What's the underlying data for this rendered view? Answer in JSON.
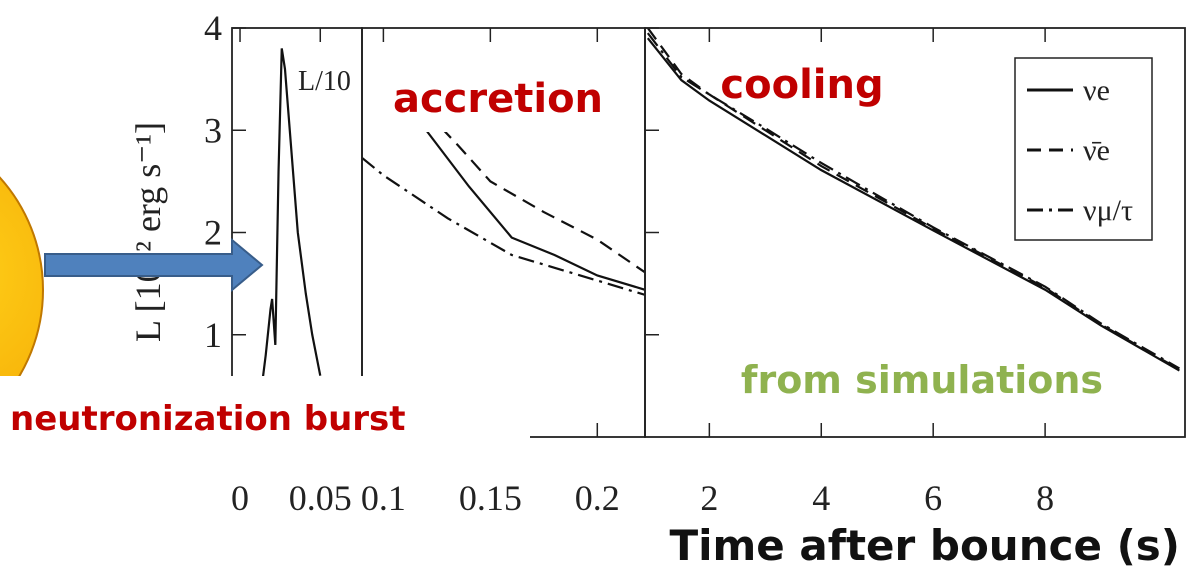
{
  "chart_data": [
    {
      "type": "line",
      "ylabel": "L [10⁵² erg s⁻¹]",
      "annotations": [
        "L/10"
      ],
      "xlim": [
        -0.005,
        0.076
      ],
      "xticks": [
        0,
        0.05
      ],
      "ylim": [
        0,
        4
      ],
      "yticks": [
        1,
        2,
        3,
        4
      ],
      "series": [
        {
          "color": "#111111",
          "dash": "solid",
          "x": [
            0.012,
            0.016,
            0.019,
            0.02,
            0.022,
            0.024,
            0.026,
            0.028,
            0.031,
            0.036,
            0.041,
            0.045,
            0.05
          ],
          "values": [
            0.3,
            0.8,
            1.25,
            1.35,
            0.9,
            2.6,
            3.8,
            3.6,
            3.0,
            2.0,
            1.4,
            1.0,
            0.6
          ]
        }
      ]
    },
    {
      "type": "line",
      "xlim": [
        0.09,
        0.2223
      ],
      "xticks": [
        0.1,
        0.15,
        0.2
      ],
      "series": [
        {
          "color": "#111111",
          "dash": "solid",
          "x": [
            0.11,
            0.12,
            0.14,
            0.16,
            0.18,
            0.2,
            0.2223
          ],
          "values": [
            3.15,
            3.0,
            2.45,
            1.95,
            1.78,
            1.58,
            1.44
          ]
        },
        {
          "color": "#111111",
          "dash": "dashed",
          "x": [
            0.12,
            0.135,
            0.15,
            0.175,
            0.2,
            0.2223
          ],
          "values": [
            3.18,
            2.85,
            2.5,
            2.2,
            1.93,
            1.61
          ]
        },
        {
          "color": "#111111",
          "dash": "dashdot",
          "x": [
            0.09,
            0.1,
            0.13,
            0.16,
            0.2,
            0.2223
          ],
          "values": [
            2.73,
            2.56,
            2.14,
            1.78,
            1.53,
            1.39
          ]
        }
      ]
    },
    {
      "type": "line",
      "xlim": [
        0.85,
        10.5
      ],
      "xticks": [
        2,
        4,
        6,
        8
      ],
      "legend": "top-right",
      "series": [
        {
          "name": "νe",
          "color": "#111111",
          "dash": "solid",
          "x": [
            0.9,
            1.5,
            2,
            3,
            4,
            6,
            8,
            9,
            10.4
          ],
          "values": [
            3.9,
            3.49,
            3.29,
            2.95,
            2.61,
            2.02,
            1.44,
            1.09,
            0.65
          ]
        },
        {
          "name": "ν̄e",
          "color": "#111111",
          "dash": "dashed",
          "x": [
            0.9,
            1.5,
            2,
            3,
            4,
            6,
            8,
            9,
            10.4
          ],
          "values": [
            4.0,
            3.55,
            3.35,
            3.0,
            2.65,
            2.04,
            1.46,
            1.1,
            0.66
          ]
        },
        {
          "name": "νμ/τ",
          "color": "#111111",
          "dash": "dashdot",
          "x": [
            0.9,
            1.5,
            2,
            3,
            4,
            6,
            8,
            9,
            10.4
          ],
          "values": [
            3.95,
            3.52,
            3.35,
            3.02,
            2.68,
            2.05,
            1.47,
            1.11,
            0.67
          ]
        }
      ]
    }
  ],
  "annotations": [
    "accretion",
    "cooling",
    "neutronization burst",
    "from simulations"
  ],
  "xlabel": "Time after bounce (s)"
}
